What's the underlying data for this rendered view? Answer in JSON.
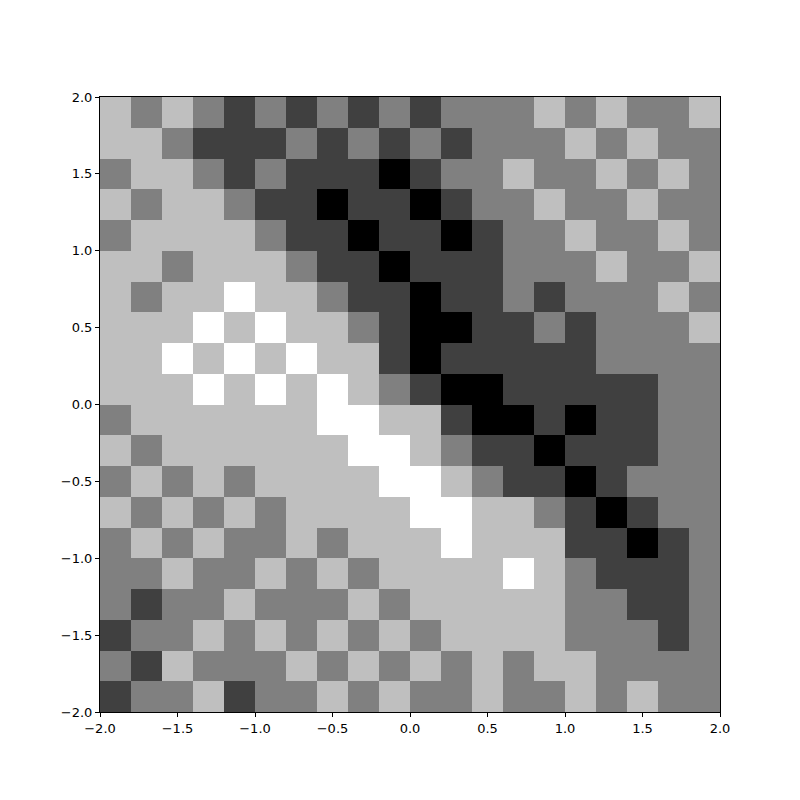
{
  "chart_data": {
    "type": "heatmap",
    "x": [
      -1.9,
      -1.7,
      -1.5,
      -1.3,
      -1.1,
      -0.9,
      -0.7,
      -0.5,
      -0.3,
      -0.1,
      0.1,
      0.3,
      0.5,
      0.7,
      0.9,
      1.1,
      1.3,
      1.5,
      1.7,
      1.9
    ],
    "y": [
      -1.9,
      -1.7,
      -1.5,
      -1.3,
      -1.1,
      -0.9,
      -0.7,
      -0.5,
      -0.3,
      -0.1,
      0.1,
      0.3,
      0.5,
      0.7,
      0.9,
      1.1,
      1.3,
      1.5,
      1.7,
      1.9
    ],
    "z": [
      [
        1,
        2,
        2,
        3,
        1,
        2,
        2,
        3,
        2,
        3,
        2,
        2,
        3,
        2,
        2,
        3,
        2,
        3,
        2,
        2
      ],
      [
        2,
        1,
        3,
        2,
        2,
        2,
        3,
        2,
        3,
        2,
        3,
        2,
        3,
        2,
        3,
        3,
        2,
        2,
        2,
        2
      ],
      [
        1,
        2,
        2,
        3,
        2,
        3,
        2,
        3,
        2,
        3,
        2,
        3,
        3,
        3,
        3,
        2,
        2,
        2,
        1,
        2
      ],
      [
        2,
        1,
        2,
        2,
        3,
        2,
        2,
        2,
        3,
        2,
        3,
        3,
        3,
        3,
        3,
        2,
        2,
        1,
        1,
        2
      ],
      [
        2,
        2,
        3,
        2,
        2,
        3,
        2,
        3,
        2,
        3,
        3,
        3,
        3,
        4,
        3,
        2,
        1,
        1,
        1,
        2
      ],
      [
        2,
        3,
        2,
        3,
        2,
        2,
        3,
        2,
        3,
        3,
        3,
        4,
        3,
        3,
        3,
        1,
        1,
        0,
        1,
        2
      ],
      [
        3,
        2,
        3,
        2,
        3,
        2,
        3,
        3,
        3,
        3,
        4,
        4,
        3,
        3,
        2,
        1,
        0,
        1,
        2,
        2
      ],
      [
        2,
        3,
        2,
        3,
        2,
        3,
        3,
        3,
        3,
        4,
        4,
        3,
        2,
        1,
        1,
        0,
        1,
        2,
        2,
        2
      ],
      [
        3,
        2,
        3,
        3,
        3,
        3,
        3,
        3,
        4,
        4,
        3,
        2,
        1,
        1,
        0,
        1,
        1,
        1,
        2,
        2
      ],
      [
        2,
        3,
        3,
        3,
        3,
        3,
        3,
        4,
        4,
        3,
        3,
        1,
        0,
        0,
        1,
        0,
        1,
        1,
        2,
        2
      ],
      [
        3,
        3,
        3,
        4,
        3,
        4,
        3,
        4,
        3,
        2,
        1,
        0,
        0,
        1,
        1,
        1,
        1,
        1,
        2,
        2
      ],
      [
        3,
        3,
        4,
        3,
        4,
        3,
        4,
        3,
        3,
        1,
        0,
        1,
        1,
        1,
        1,
        1,
        2,
        2,
        2,
        2
      ],
      [
        3,
        3,
        3,
        4,
        3,
        4,
        3,
        3,
        2,
        1,
        0,
        0,
        1,
        1,
        2,
        1,
        2,
        2,
        2,
        3
      ],
      [
        3,
        2,
        3,
        3,
        4,
        3,
        3,
        2,
        1,
        1,
        0,
        1,
        1,
        2,
        1,
        2,
        2,
        2,
        3,
        2
      ],
      [
        3,
        3,
        2,
        3,
        3,
        3,
        2,
        1,
        1,
        0,
        1,
        1,
        1,
        2,
        2,
        2,
        3,
        2,
        2,
        3
      ],
      [
        2,
        3,
        3,
        3,
        3,
        2,
        1,
        1,
        0,
        1,
        1,
        0,
        1,
        2,
        2,
        3,
        2,
        2,
        3,
        2
      ],
      [
        3,
        2,
        3,
        3,
        2,
        1,
        1,
        0,
        1,
        1,
        0,
        1,
        2,
        2,
        3,
        2,
        2,
        3,
        2,
        2
      ],
      [
        2,
        3,
        3,
        2,
        1,
        2,
        1,
        1,
        1,
        0,
        1,
        2,
        2,
        3,
        2,
        2,
        3,
        2,
        3,
        2
      ],
      [
        3,
        3,
        2,
        1,
        1,
        1,
        2,
        1,
        2,
        1,
        2,
        1,
        2,
        2,
        2,
        3,
        2,
        3,
        2,
        2
      ],
      [
        3,
        2,
        3,
        2,
        1,
        2,
        1,
        2,
        1,
        2,
        1,
        2,
        2,
        2,
        3,
        2,
        3,
        2,
        2,
        3
      ]
    ],
    "xlim": [
      -2,
      2
    ],
    "ylim": [
      -2,
      2
    ],
    "xticks": [
      {
        "value": -2,
        "label": "−2.0"
      },
      {
        "value": -1.5,
        "label": "−1.5"
      },
      {
        "value": -1,
        "label": "−1.0"
      },
      {
        "value": -0.5,
        "label": "−0.5"
      },
      {
        "value": 0,
        "label": "0.0"
      },
      {
        "value": 0.5,
        "label": "0.5"
      },
      {
        "value": 1,
        "label": "1.0"
      },
      {
        "value": 1.5,
        "label": "1.5"
      },
      {
        "value": 2,
        "label": "2.0"
      }
    ],
    "yticks": [
      {
        "value": -2,
        "label": "−2.0"
      },
      {
        "value": -1.5,
        "label": "−1.5"
      },
      {
        "value": -1,
        "label": "−1.0"
      },
      {
        "value": -0.5,
        "label": "−0.5"
      },
      {
        "value": 0,
        "label": "0.0"
      },
      {
        "value": 0.5,
        "label": "0.5"
      },
      {
        "value": 1,
        "label": "1.0"
      },
      {
        "value": 1.5,
        "label": "1.5"
      },
      {
        "value": 2,
        "label": "2.0"
      }
    ],
    "grid": false
  }
}
